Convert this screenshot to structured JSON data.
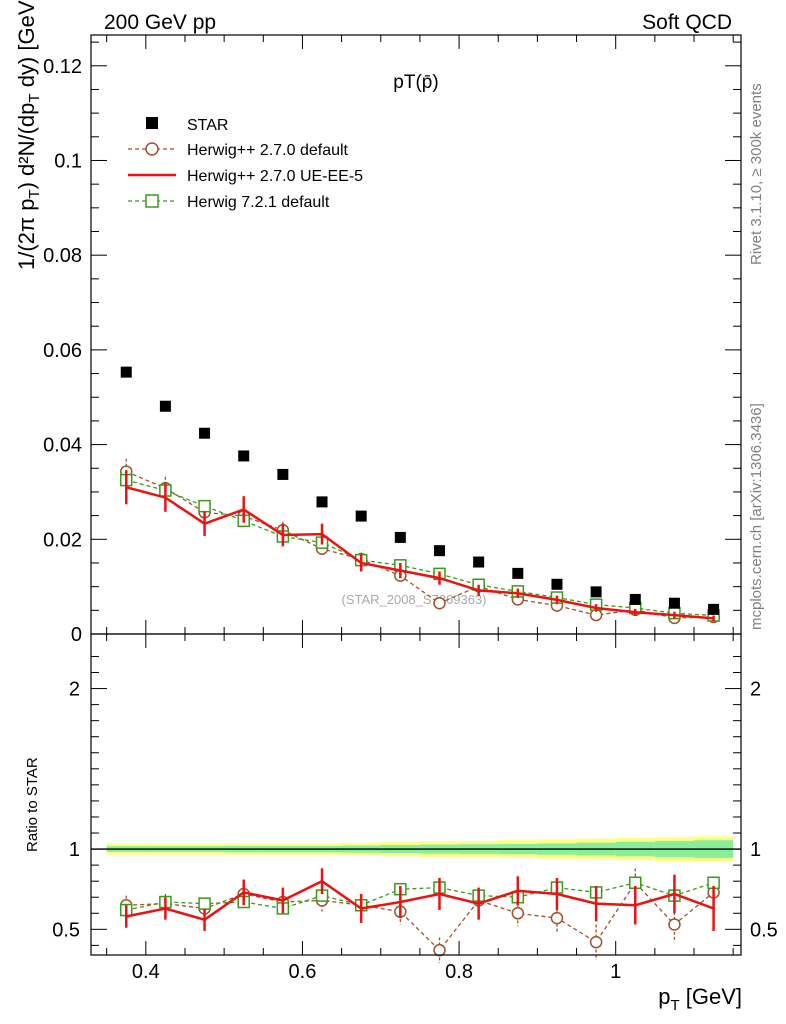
{
  "header": {
    "left": "200 GeV pp",
    "right": "Soft QCD"
  },
  "side_labels": {
    "rivet": "Rivet 3.1.10, ≥ 300k events",
    "mcplots": "mcplots.cern.ch [arXiv:1306.3436]"
  },
  "watermark": "(STAR_2008_S7869363)",
  "colors": {
    "star": "#000000",
    "herwig_default": "#a0522d",
    "herwig_ueee5": "#ee1111",
    "herwig721": "#3a9a1a",
    "band_outer": "#ffff88",
    "band_inner": "#88ee99"
  },
  "chart_data": [
    {
      "type": "scatter",
      "panel": "main",
      "title": "pT(p̄)",
      "ylabel": "1/(2π pT) d²N/(dpT dy) [GeV⁻²]",
      "xlim": [
        0.33,
        1.16
      ],
      "ylim": [
        0,
        0.1265
      ],
      "yticks": [
        {
          "v": 0,
          "label": "0"
        },
        {
          "v": 0.02,
          "label": "0.02"
        },
        {
          "v": 0.04,
          "label": "0.04"
        },
        {
          "v": 0.06,
          "label": "0.06"
        },
        {
          "v": 0.08,
          "label": "0.08"
        },
        {
          "v": 0.1,
          "label": "0.1"
        },
        {
          "v": 0.12,
          "label": "0.12"
        }
      ],
      "x": [
        0.375,
        0.425,
        0.475,
        0.525,
        0.575,
        0.625,
        0.675,
        0.725,
        0.775,
        0.825,
        0.875,
        0.925,
        0.975,
        1.025,
        1.075,
        1.125
      ],
      "series": [
        {
          "name": "STAR",
          "marker": "filled-square",
          "values": [
            0.0553,
            0.0481,
            0.0424,
            0.0376,
            0.0337,
            0.0279,
            0.0249,
            0.0204,
            0.0176,
            0.0152,
            0.0128,
            0.0105,
            0.0089,
            0.0073,
            0.0065,
            0.0052
          ]
        },
        {
          "name": "Herwig++ 2.7.0 default",
          "marker": "open-circle",
          "dashed": true,
          "values": [
            0.0343,
            0.0308,
            0.0257,
            0.0249,
            0.0219,
            0.018,
            0.0158,
            0.0123,
            0.0065,
            0.0101,
            0.0073,
            0.006,
            0.004,
            0.0051,
            0.0034,
            0.0036
          ],
          "err": [
            0.0027,
            0.0024,
            0.0021,
            0.002,
            0.0018,
            0.0016,
            0.0014,
            0.0012,
            0.001,
            0.001,
            0.0008,
            0.0007,
            0.0006,
            0.0006,
            0.0005,
            0.0005
          ]
        },
        {
          "name": "Herwig++ 2.7.0 UE-EE-5",
          "marker": "line",
          "dashed": false,
          "values": [
            0.031,
            0.0288,
            0.0233,
            0.0263,
            0.0209,
            0.0211,
            0.015,
            0.0134,
            0.0118,
            0.0092,
            0.0086,
            0.0072,
            0.0055,
            0.0046,
            0.004,
            0.0033
          ],
          "err": [
            0.0036,
            0.003,
            0.0026,
            0.0028,
            0.0024,
            0.0022,
            0.0018,
            0.0016,
            0.0014,
            0.0012,
            0.001,
            0.0009,
            0.0008,
            0.0007,
            0.0007,
            0.0006
          ]
        },
        {
          "name": "Herwig 7.2.1 default",
          "marker": "open-square",
          "dashed": true,
          "values": [
            0.0325,
            0.0303,
            0.027,
            0.0239,
            0.0206,
            0.0193,
            0.0156,
            0.0145,
            0.0127,
            0.0104,
            0.009,
            0.0077,
            0.0062,
            0.0055,
            0.0044,
            0.0039
          ],
          "err": [
            0.0012,
            0.001,
            0.0009,
            0.0008,
            0.0007,
            0.0007,
            0.0006,
            0.0005,
            0.0005,
            0.0004,
            0.0004,
            0.0003,
            0.0003,
            0.0003,
            0.0002,
            0.0002
          ]
        }
      ]
    },
    {
      "type": "line",
      "panel": "ratio",
      "ylabel": "Ratio to STAR",
      "xlabel": "p_T [GeV]",
      "xlim": [
        0.33,
        1.16
      ],
      "ylim": [
        0.34,
        2.34
      ],
      "xticks": [
        {
          "v": 0.4,
          "label": "0.4"
        },
        {
          "v": 0.6,
          "label": "0.6"
        },
        {
          "v": 0.8,
          "label": "0.8"
        },
        {
          "v": 1.0,
          "label": "1"
        }
      ],
      "yticks": [
        {
          "v": 0.5,
          "label": "0.5"
        },
        {
          "v": 1,
          "label": "1"
        },
        {
          "v": 2,
          "label": "2"
        }
      ],
      "x": [
        0.375,
        0.425,
        0.475,
        0.525,
        0.575,
        0.625,
        0.675,
        0.725,
        0.775,
        0.825,
        0.875,
        0.925,
        0.975,
        1.025,
        1.075,
        1.125
      ],
      "bands": {
        "outer": [
          0.035,
          0.035,
          0.035,
          0.035,
          0.035,
          0.035,
          0.04,
          0.045,
          0.05,
          0.05,
          0.055,
          0.06,
          0.065,
          0.07,
          0.075,
          0.08
        ],
        "inner": [
          0.018,
          0.018,
          0.018,
          0.02,
          0.02,
          0.02,
          0.022,
          0.025,
          0.028,
          0.03,
          0.032,
          0.035,
          0.04,
          0.045,
          0.05,
          0.055
        ]
      },
      "series": [
        {
          "name": "Herwig++ 2.7.0 default",
          "values": [
            0.65,
            0.66,
            0.63,
            0.72,
            0.67,
            0.68,
            0.65,
            0.61,
            0.37,
            0.68,
            0.6,
            0.57,
            0.42,
            0.79,
            0.53,
            0.73
          ],
          "err": [
            0.06,
            0.06,
            0.05,
            0.06,
            0.06,
            0.07,
            0.07,
            0.08,
            0.08,
            0.08,
            0.08,
            0.09,
            0.11,
            0.09,
            0.11,
            0.1
          ]
        },
        {
          "name": "Herwig++ 2.7.0 UE-EE-5",
          "values": [
            0.58,
            0.63,
            0.56,
            0.73,
            0.68,
            0.8,
            0.63,
            0.67,
            0.72,
            0.66,
            0.74,
            0.72,
            0.66,
            0.65,
            0.72,
            0.63
          ],
          "err": [
            0.07,
            0.07,
            0.07,
            0.08,
            0.08,
            0.08,
            0.09,
            0.1,
            0.1,
            0.1,
            0.09,
            0.1,
            0.11,
            0.12,
            0.12,
            0.14
          ]
        },
        {
          "name": "Herwig 7.2.1 default",
          "values": [
            0.62,
            0.67,
            0.66,
            0.67,
            0.63,
            0.71,
            0.65,
            0.75,
            0.76,
            0.71,
            0.7,
            0.76,
            0.73,
            0.79,
            0.71,
            0.79
          ],
          "err": [
            0.02,
            0.02,
            0.02,
            0.02,
            0.02,
            0.02,
            0.02,
            0.02,
            0.02,
            0.02,
            0.02,
            0.02,
            0.02,
            0.02,
            0.02,
            0.03
          ]
        }
      ]
    }
  ]
}
